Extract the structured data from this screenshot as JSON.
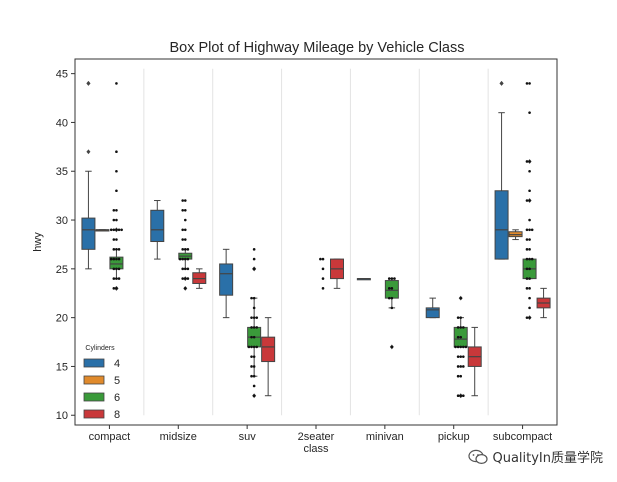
{
  "chart_data": {
    "type": "box",
    "title": "Box Plot of Highway Mileage by Vehicle Class",
    "xlabel": "class",
    "ylabel": "hwy",
    "ylim": [
      9,
      46.5
    ],
    "yticks": [
      10,
      15,
      20,
      25,
      30,
      35,
      40,
      45
    ],
    "categories": [
      "compact",
      "midsize",
      "suv",
      "2seater",
      "minivan",
      "pickup",
      "subcompact"
    ],
    "legend": {
      "title": "Cylinders",
      "position": "lower-left",
      "entries": [
        {
          "label": "4",
          "color": "#2a70a8"
        },
        {
          "label": "5",
          "color": "#e08a2c"
        },
        {
          "label": "6",
          "color": "#3a9a3a"
        },
        {
          "label": "8",
          "color": "#c9383a"
        }
      ]
    },
    "series_order": [
      "4",
      "5",
      "6",
      "8"
    ],
    "boxes": [
      {
        "category": "compact",
        "group": "4",
        "min": 25,
        "q1": 27,
        "median": 29,
        "q3": 30.2,
        "max": 35,
        "outliers": [
          37,
          44,
          44
        ]
      },
      {
        "category": "compact",
        "group": "5",
        "min": 29,
        "q1": 29,
        "median": 29,
        "q3": 29,
        "max": 29,
        "outliers": []
      },
      {
        "category": "compact",
        "group": "6",
        "min": 24,
        "q1": 25,
        "median": 25.5,
        "q3": 26.2,
        "max": 27,
        "outliers": [
          23,
          23,
          29
        ]
      },
      {
        "category": "midsize",
        "group": "4",
        "min": 26,
        "q1": 27.8,
        "median": 29,
        "q3": 31,
        "max": 32,
        "outliers": []
      },
      {
        "category": "midsize",
        "group": "6",
        "min": 25,
        "q1": 26,
        "median": 26.3,
        "q3": 26.6,
        "max": 27,
        "outliers": [
          23,
          24
        ]
      },
      {
        "category": "midsize",
        "group": "8",
        "min": 23,
        "q1": 23.5,
        "median": 24,
        "q3": 24.6,
        "max": 25,
        "outliers": []
      },
      {
        "category": "suv",
        "group": "4",
        "min": 20,
        "q1": 22.3,
        "median": 24.5,
        "q3": 25.5,
        "max": 27,
        "outliers": []
      },
      {
        "category": "suv",
        "group": "6",
        "min": 14,
        "q1": 17,
        "median": 18,
        "q3": 19,
        "max": 22,
        "outliers": [
          12,
          25,
          25
        ]
      },
      {
        "category": "suv",
        "group": "8",
        "min": 12,
        "q1": 15.5,
        "median": 17,
        "q3": 18,
        "max": 20,
        "outliers": []
      },
      {
        "category": "2seater",
        "group": "8",
        "min": 23,
        "q1": 24,
        "median": 25,
        "q3": 26,
        "max": 26,
        "outliers": []
      },
      {
        "category": "minivan",
        "group": "4",
        "min": 24,
        "q1": 24,
        "median": 24,
        "q3": 24,
        "max": 24,
        "outliers": []
      },
      {
        "category": "minivan",
        "group": "6",
        "min": 21,
        "q1": 22,
        "median": 22.8,
        "q3": 23.8,
        "max": 24,
        "outliers": [
          17
        ]
      },
      {
        "category": "pickup",
        "group": "4",
        "min": 20,
        "q1": 20,
        "median": 20.8,
        "q3": 21,
        "max": 22,
        "outliers": []
      },
      {
        "category": "pickup",
        "group": "6",
        "min": 17,
        "q1": 17,
        "median": 17.8,
        "q3": 19,
        "max": 20,
        "outliers": [
          12,
          12,
          22
        ]
      },
      {
        "category": "pickup",
        "group": "8",
        "min": 12,
        "q1": 15,
        "median": 16,
        "q3": 17,
        "max": 19,
        "outliers": []
      },
      {
        "category": "subcompact",
        "group": "4",
        "min": 26,
        "q1": 26,
        "median": 29,
        "q3": 33,
        "max": 41,
        "outliers": [
          44,
          44
        ]
      },
      {
        "category": "subcompact",
        "group": "5",
        "min": 28,
        "q1": 28.3,
        "median": 28.5,
        "q3": 28.8,
        "max": 29,
        "outliers": []
      },
      {
        "category": "subcompact",
        "group": "6",
        "min": 24,
        "q1": 24,
        "median": 25,
        "q3": 26,
        "max": 26,
        "outliers": [
          20,
          32,
          36
        ]
      },
      {
        "category": "subcompact",
        "group": "8",
        "min": 20,
        "q1": 21,
        "median": 21.5,
        "q3": 22,
        "max": 23,
        "outliers": []
      }
    ],
    "points": [
      {
        "category": "compact",
        "values": [
          44,
          37,
          35,
          33,
          31,
          31,
          30,
          30,
          29,
          29,
          29,
          29,
          29,
          28,
          28,
          27,
          27,
          27,
          26,
          26,
          26,
          26,
          25,
          25,
          25,
          24,
          24,
          24,
          23,
          23
        ]
      },
      {
        "category": "midsize",
        "values": [
          32,
          32,
          31,
          31,
          30,
          29,
          29,
          28,
          28,
          27,
          27,
          27,
          26,
          26,
          26,
          26,
          25,
          25,
          25,
          24,
          24,
          24,
          23
        ]
      },
      {
        "category": "suv",
        "values": [
          27,
          26,
          25,
          22,
          22,
          21,
          20,
          20,
          20,
          19,
          19,
          19,
          18,
          18,
          17,
          17,
          17,
          17,
          16,
          16,
          15,
          15,
          14,
          14,
          13,
          12
        ]
      },
      {
        "category": "2seater",
        "values": [
          26,
          26,
          25,
          24,
          23
        ]
      },
      {
        "category": "minivan",
        "values": [
          24,
          24,
          24,
          23,
          23,
          22,
          22,
          21,
          17
        ]
      },
      {
        "category": "pickup",
        "values": [
          22,
          20,
          20,
          19,
          19,
          19,
          18,
          18,
          17,
          17,
          17,
          17,
          17,
          16,
          16,
          16,
          15,
          15,
          15,
          14,
          14,
          12,
          12,
          12
        ]
      },
      {
        "category": "subcompact",
        "values": [
          44,
          44,
          41,
          36,
          36,
          35,
          33,
          32,
          32,
          30,
          29,
          29,
          29,
          28,
          28,
          27,
          27,
          26,
          26,
          26,
          25,
          25,
          24,
          24,
          23,
          23,
          22,
          21,
          20,
          20
        ]
      }
    ]
  },
  "watermark": {
    "text": "QualityIn质量学院"
  }
}
